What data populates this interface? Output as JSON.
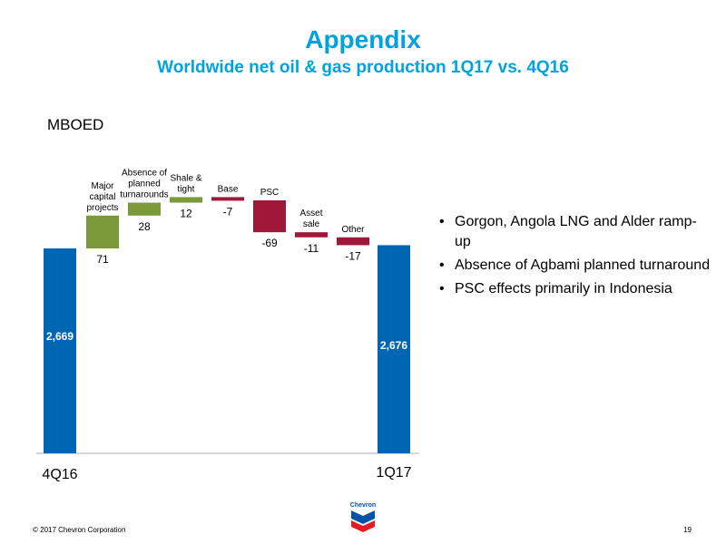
{
  "header": {
    "title": "Appendix",
    "subtitle": "Worldwide net oil & gas production 1Q17 vs. 4Q16"
  },
  "bullets": [
    "Gorgon, Angola LNG and Alder ramp-up",
    "Absence of Agbami planned turnaround",
    "PSC effects primarily in Indonesia"
  ],
  "footer": {
    "copyright": "© 2017 Chevron Corporation",
    "page_number": "19",
    "logo_text": "Chevron"
  },
  "colors": {
    "title": "#00A3E0",
    "total_bar": "#0066B3",
    "increase": "#7A9A3A",
    "decrease": "#A0173A"
  },
  "chart_data": {
    "type": "waterfall",
    "ylabel": "MBOED",
    "start": {
      "label": "4Q16",
      "value": 2669,
      "value_label": "2,669"
    },
    "end": {
      "label": "1Q17",
      "value": 2676,
      "value_label": "2,676"
    },
    "steps": [
      {
        "name": "Major capital projects",
        "label_lines": [
          "Major",
          "capital",
          "projects"
        ],
        "value": 71,
        "value_label": "71"
      },
      {
        "name": "Absence of planned turnarounds",
        "label_lines": [
          "Absence of",
          "planned",
          "turnarounds"
        ],
        "value": 28,
        "value_label": "28"
      },
      {
        "name": "Shale & tight",
        "label_lines": [
          "Shale &",
          "tight"
        ],
        "value": 12,
        "value_label": "12"
      },
      {
        "name": "Base",
        "label_lines": [
          "Base"
        ],
        "value": -7,
        "value_label": "-7"
      },
      {
        "name": "PSC",
        "label_lines": [
          "PSC"
        ],
        "value": -69,
        "value_label": "-69"
      },
      {
        "name": "Asset sale",
        "label_lines": [
          "Asset",
          "sale"
        ],
        "value": -11,
        "value_label": "-11"
      },
      {
        "name": "Other",
        "label_lines": [
          "Other"
        ],
        "value": -17,
        "value_label": "-17"
      }
    ]
  }
}
